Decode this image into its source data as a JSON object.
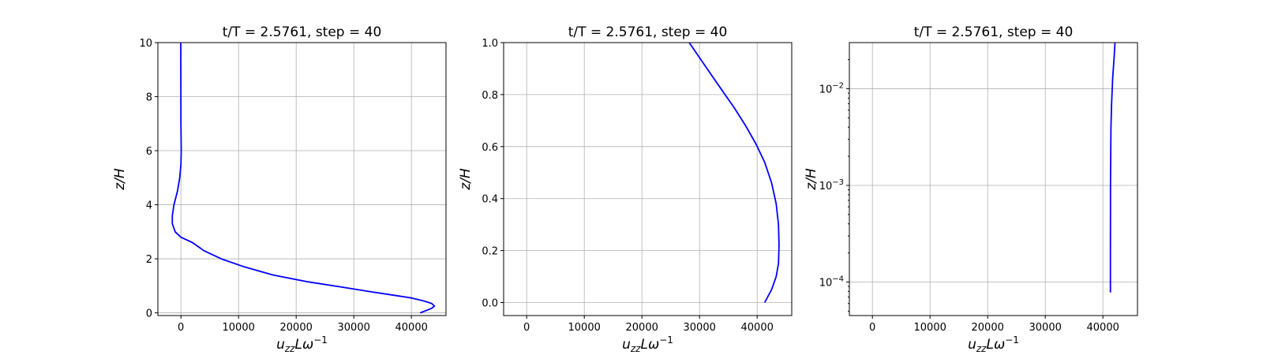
{
  "chart_data": [
    {
      "type": "line",
      "title": "t/T = 2.5761, step = 40",
      "xlabel_base": "u",
      "xlabel_sub": "zz",
      "xlabel_rest": "Lω",
      "xlabel_sup": "−1",
      "ylabel": "z/H",
      "xlim": [
        -4000,
        46000
      ],
      "ylim": [
        -0.1,
        10
      ],
      "yscale": "linear",
      "xticks": [
        0,
        10000,
        20000,
        30000,
        40000
      ],
      "xtick_labels": [
        "0",
        "10000",
        "20000",
        "30000",
        "40000"
      ],
      "yticks": [
        0,
        2,
        4,
        6,
        8,
        10
      ],
      "ytick_labels": [
        "0",
        "2",
        "4",
        "6",
        "8",
        "10"
      ],
      "grid": true,
      "series": [
        {
          "color": "#0000ff",
          "x": [
            41500,
            42500,
            43500,
            44000,
            43500,
            42000,
            40000,
            37000,
            33000,
            28000,
            22000,
            16000,
            11000,
            7000,
            4000,
            2000,
            0,
            -1000,
            -1500,
            -1500,
            -1200,
            -600,
            -200,
            0,
            50,
            0,
            -20,
            -30
          ],
          "y": [
            0,
            0.08,
            0.17,
            0.25,
            0.35,
            0.45,
            0.55,
            0.65,
            0.78,
            0.95,
            1.15,
            1.4,
            1.7,
            2.0,
            2.3,
            2.6,
            2.8,
            3.0,
            3.3,
            3.6,
            4.0,
            4.5,
            5.0,
            5.5,
            6.0,
            7.0,
            8.5,
            10
          ]
        }
      ]
    },
    {
      "type": "line",
      "title": "t/T = 2.5761, step = 40",
      "xlabel_base": "u",
      "xlabel_sub": "zz",
      "xlabel_rest": "Lω",
      "xlabel_sup": "−1",
      "ylabel": "z/H",
      "xlim": [
        -4000,
        46000
      ],
      "ylim": [
        -0.05,
        1.0
      ],
      "yscale": "linear",
      "xticks": [
        0,
        10000,
        20000,
        30000,
        40000
      ],
      "xtick_labels": [
        "0",
        "10000",
        "20000",
        "30000",
        "40000"
      ],
      "yticks": [
        0,
        0.2,
        0.4,
        0.6,
        0.8,
        1.0
      ],
      "ytick_labels": [
        "0.0",
        "0.2",
        "0.4",
        "0.6",
        "0.8",
        "1.0"
      ],
      "grid": true,
      "series": [
        {
          "color": "#0000ff",
          "x": [
            41300,
            42500,
            43300,
            43700,
            43800,
            43700,
            43300,
            42500,
            41300,
            39800,
            38000,
            36000,
            33800,
            31300,
            28200
          ],
          "y": [
            0,
            0.05,
            0.1,
            0.15,
            0.22,
            0.3,
            0.38,
            0.46,
            0.54,
            0.61,
            0.68,
            0.75,
            0.82,
            0.9,
            1.0
          ]
        }
      ]
    },
    {
      "type": "line",
      "title": "t/T = 2.5761, step = 40",
      "xlabel_base": "u",
      "xlabel_sub": "zz",
      "xlabel_rest": "Lω",
      "xlabel_sup": "−1",
      "ylabel": "z/H",
      "xlim": [
        -4000,
        46000
      ],
      "ylim": [
        4.5e-05,
        0.03
      ],
      "yscale": "log",
      "xticks": [
        0,
        10000,
        20000,
        30000,
        40000
      ],
      "xtick_labels": [
        "0",
        "10000",
        "20000",
        "30000",
        "40000"
      ],
      "yticks": [
        0.0001,
        0.001,
        0.01
      ],
      "ytick_base": "10",
      "ytick_exponents": [
        "−4",
        "−3",
        "−2"
      ],
      "grid": true,
      "series": [
        {
          "color": "#0000ff",
          "x": [
            41300,
            41300,
            41310,
            41320,
            41350,
            41400,
            41500,
            41700,
            41950,
            42100
          ],
          "y": [
            7.8e-05,
            0.0002,
            0.0005,
            0.001,
            0.002,
            0.004,
            0.007,
            0.013,
            0.021,
            0.03
          ]
        }
      ]
    }
  ]
}
